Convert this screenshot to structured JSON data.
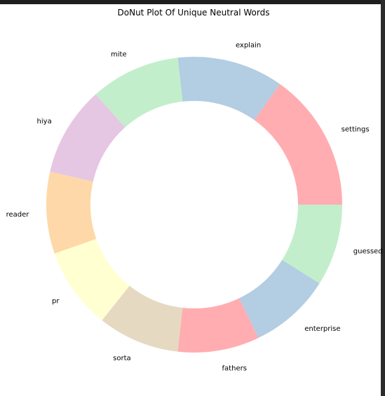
{
  "chart_data": {
    "type": "pie",
    "style": "donut",
    "title": "DoNut Plot Of Unique Neutral Words",
    "slices": [
      {
        "label": "settings",
        "value": 17,
        "color": "#ffadb1"
      },
      {
        "label": "explain",
        "value": 13,
        "color": "#b3cde2"
      },
      {
        "label": "mite",
        "value": 11,
        "color": "#c3eecb"
      },
      {
        "label": "hiya",
        "value": 11,
        "color": "#e5c6e3"
      },
      {
        "label": "reader",
        "value": 10,
        "color": "#fed8a8"
      },
      {
        "label": "pr",
        "value": 10,
        "color": "#ffffd2"
      },
      {
        "label": "sorta",
        "value": 10,
        "color": "#e6d9c1"
      },
      {
        "label": "fathers",
        "value": 10,
        "color": "#ffadb1"
      },
      {
        "label": "enterprise",
        "value": 10,
        "color": "#b3cde2"
      },
      {
        "label": "guessed",
        "value": 10,
        "color": "#c3eecb"
      }
    ]
  }
}
